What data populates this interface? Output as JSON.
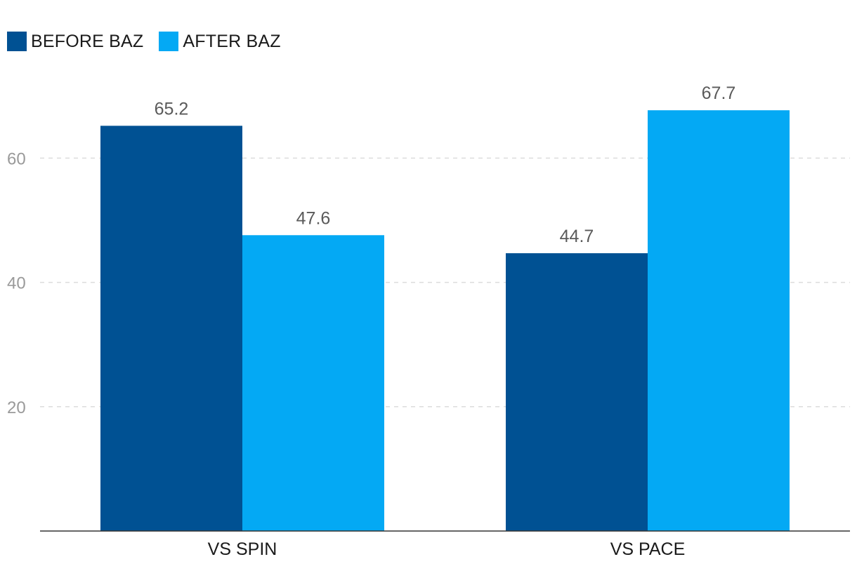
{
  "chart_data": {
    "type": "bar",
    "categories": [
      "VS SPIN",
      "VS PACE"
    ],
    "series": [
      {
        "name": "BEFORE BAZ",
        "values": [
          65.2,
          44.7
        ],
        "color": "#005193"
      },
      {
        "name": "AFTER BAZ",
        "values": [
          47.6,
          67.7
        ],
        "color": "#04a9f4"
      }
    ],
    "yticks": [
      20,
      40,
      60
    ],
    "ylim": [
      0,
      75
    ],
    "grid": true,
    "legend": "top-left",
    "data_labels": true
  }
}
